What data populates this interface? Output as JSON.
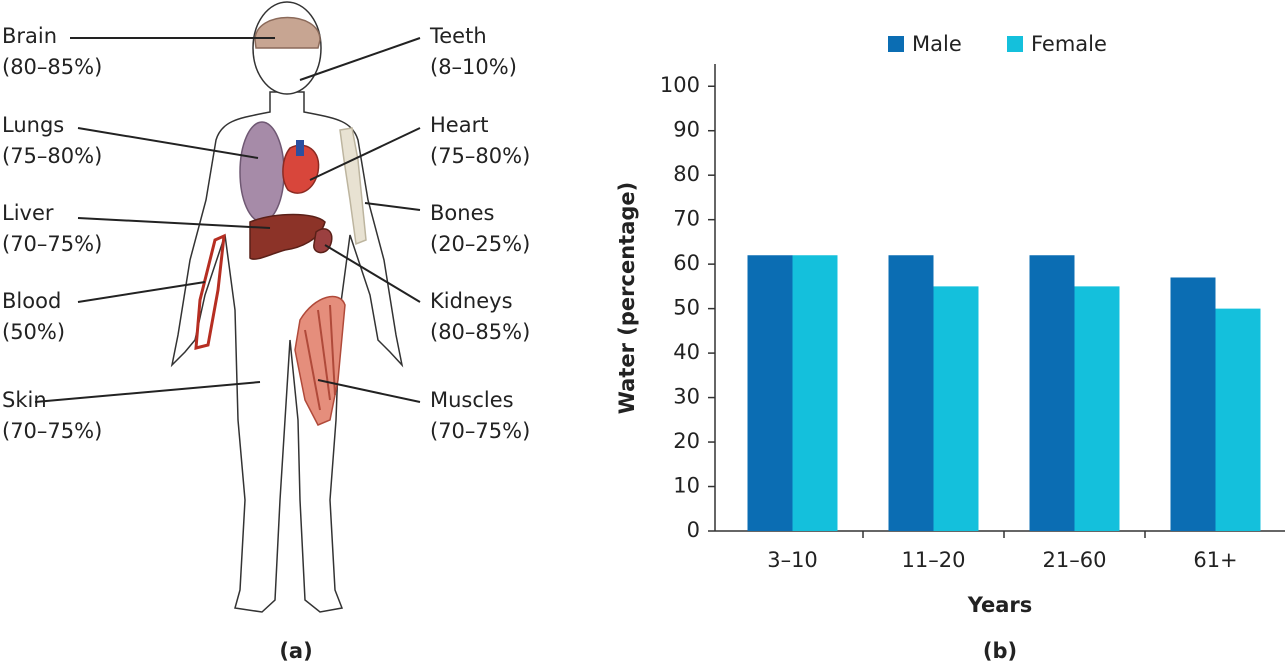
{
  "diagram": {
    "labels": [
      {
        "name": "Brain",
        "value": "(80–85%)"
      },
      {
        "name": "Teeth",
        "value": "(8–10%)"
      },
      {
        "name": "Lungs",
        "value": "(75–80%)"
      },
      {
        "name": "Heart",
        "value": "(75–80%)"
      },
      {
        "name": "Liver",
        "value": "(70–75%)"
      },
      {
        "name": "Bones",
        "value": "(20–25%)"
      },
      {
        "name": "Blood",
        "value": "(50%)"
      },
      {
        "name": "Kidneys",
        "value": "(80–85%)"
      },
      {
        "name": "Skin",
        "value": "(70–75%)"
      },
      {
        "name": "Muscles",
        "value": "(70–75%)"
      }
    ],
    "caption": "(a)"
  },
  "chart_data": {
    "type": "bar",
    "caption": "(b)",
    "xlabel": "Years",
    "ylabel": "Water (percentage)",
    "categories": [
      "3–10",
      "11–20",
      "21–60",
      "61+"
    ],
    "series": [
      {
        "name": "Male",
        "color": "#0b6db3",
        "values": [
          62,
          62,
          62,
          57
        ]
      },
      {
        "name": "Female",
        "color": "#14c0dc",
        "values": [
          62,
          55,
          55,
          50
        ]
      }
    ],
    "ylim": [
      0,
      105
    ],
    "yticks": [
      0,
      10,
      20,
      30,
      40,
      50,
      60,
      70,
      80,
      90,
      100
    ],
    "legend": "top",
    "grid": false
  }
}
